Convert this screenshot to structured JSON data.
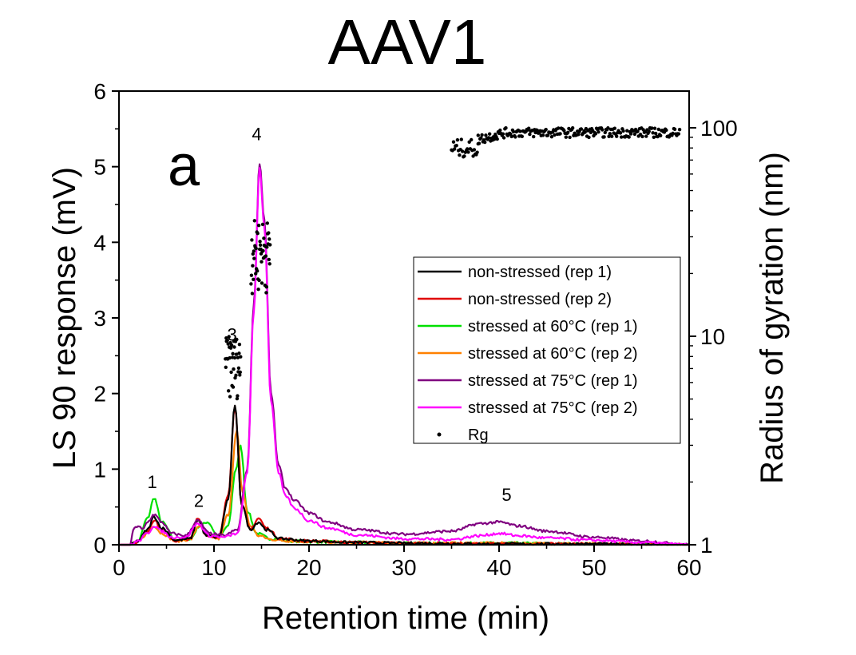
{
  "chart_data": {
    "type": "line",
    "title": "AAV1",
    "panel_label": "a",
    "xlabel": "Retention time (min)",
    "ylabel": "LS 90 response (mV)",
    "y2label": "Radius of gyration (nm)",
    "xlim": [
      0,
      60
    ],
    "ylim": [
      0,
      6
    ],
    "y2lim": [
      1,
      150
    ],
    "y2scale": "log",
    "xticks": [
      0,
      10,
      20,
      30,
      40,
      50,
      60
    ],
    "yticks": [
      0,
      1,
      2,
      3,
      4,
      5,
      6
    ],
    "y2ticks": [
      1,
      10,
      100
    ],
    "x_tick_labels": [
      "0",
      "10",
      "20",
      "30",
      "40",
      "50",
      "60"
    ],
    "y_tick_labels": [
      "0",
      "1",
      "2",
      "3",
      "4",
      "5",
      "6"
    ],
    "y2_tick_labels": [
      "1",
      "10",
      "100"
    ],
    "legend_position": "center-right",
    "series": [
      {
        "name": "non-stressed (rep 1)",
        "color": "#000000",
        "x": [
          0,
          1.2,
          2,
          3,
          3.7,
          4.5,
          6,
          7.5,
          8.3,
          9.2,
          10.5,
          11.5,
          12.2,
          12.9,
          13.8,
          14.7,
          15.5,
          17,
          20,
          25,
          30,
          40,
          50,
          60
        ],
        "y": [
          0,
          0,
          0.05,
          0.2,
          0.37,
          0.22,
          0.06,
          0.08,
          0.33,
          0.12,
          0.1,
          0.6,
          1.85,
          0.55,
          0.2,
          0.3,
          0.2,
          0.08,
          0.05,
          0.03,
          0.02,
          0.01,
          0.01,
          0
        ]
      },
      {
        "name": "non-stressed (rep 2)",
        "color": "#e00000",
        "x": [
          0,
          1.2,
          2,
          3,
          3.7,
          4.5,
          6,
          7.5,
          8.3,
          9.2,
          10.5,
          11.5,
          12.2,
          12.9,
          13.8,
          14.7,
          15.5,
          17,
          20,
          25,
          30,
          40,
          50,
          60
        ],
        "y": [
          0,
          0,
          0.04,
          0.18,
          0.33,
          0.2,
          0.05,
          0.08,
          0.35,
          0.12,
          0.1,
          0.65,
          1.85,
          0.55,
          0.2,
          0.35,
          0.22,
          0.08,
          0.05,
          0.03,
          0.02,
          0.01,
          0.01,
          0
        ]
      },
      {
        "name": "stressed at 60°C (rep 1)",
        "color": "#00e000",
        "x": [
          0,
          1.2,
          2,
          3,
          3.7,
          4.5,
          6,
          7.5,
          8.5,
          9.3,
          10.5,
          11.5,
          12.3,
          12.8,
          13.5,
          14.5,
          16,
          18,
          20,
          25,
          30,
          40,
          50,
          60
        ],
        "y": [
          0,
          0,
          0.05,
          0.35,
          0.62,
          0.3,
          0.06,
          0.08,
          0.25,
          0.3,
          0.1,
          0.25,
          1.0,
          1.3,
          0.45,
          0.15,
          0.08,
          0.05,
          0.04,
          0.03,
          0.02,
          0.02,
          0.01,
          0
        ]
      },
      {
        "name": "stressed at 60°C (rep 2)",
        "color": "#ff8000",
        "x": [
          0,
          1.2,
          2,
          3,
          3.7,
          4.5,
          6,
          7.5,
          8.4,
          9.3,
          10.5,
          11.5,
          12.4,
          13,
          13.8,
          14.7,
          16,
          18,
          20,
          25,
          30,
          40,
          50,
          60
        ],
        "y": [
          0,
          0,
          0.04,
          0.15,
          0.25,
          0.15,
          0.05,
          0.07,
          0.25,
          0.12,
          0.08,
          0.4,
          1.5,
          0.7,
          0.25,
          0.12,
          0.07,
          0.05,
          0.04,
          0.03,
          0.02,
          0.02,
          0.01,
          0
        ]
      },
      {
        "name": "stressed at 75°C (rep 1)",
        "color": "#800080",
        "x": [
          0,
          1.2,
          1.5,
          2,
          2.5,
          3,
          3.7,
          4.5,
          5.5,
          7,
          8.3,
          9.5,
          11,
          12.5,
          13.5,
          14.2,
          14.8,
          15.3,
          16,
          16.8,
          17.5,
          18.5,
          20,
          22,
          25,
          30,
          35,
          38,
          40,
          42,
          45,
          50,
          55,
          60
        ],
        "y": [
          0,
          0,
          0.2,
          0.25,
          0.2,
          0.3,
          0.4,
          0.3,
          0.15,
          0.12,
          0.32,
          0.15,
          0.12,
          0.2,
          1.0,
          3.2,
          5.05,
          4.3,
          2.0,
          1.05,
          0.75,
          0.58,
          0.42,
          0.3,
          0.2,
          0.14,
          0.18,
          0.28,
          0.3,
          0.25,
          0.18,
          0.1,
          0.05,
          0
        ]
      },
      {
        "name": "stressed at 75°C (rep 2)",
        "color": "#ff00ff",
        "x": [
          0,
          1.2,
          2,
          3,
          3.7,
          4.5,
          5.5,
          7,
          8.3,
          9.5,
          11,
          12.5,
          13.5,
          14.2,
          14.8,
          15.3,
          16,
          16.8,
          17.5,
          18.5,
          20,
          22,
          25,
          30,
          35,
          38,
          40,
          42,
          45,
          50,
          55,
          60
        ],
        "y": [
          0,
          0,
          0.05,
          0.15,
          0.25,
          0.18,
          0.1,
          0.1,
          0.28,
          0.12,
          0.1,
          0.15,
          0.95,
          3.1,
          4.98,
          4.2,
          1.9,
          0.95,
          0.65,
          0.48,
          0.32,
          0.22,
          0.13,
          0.08,
          0.07,
          0.12,
          0.15,
          0.12,
          0.09,
          0.06,
          0.03,
          0
        ]
      }
    ],
    "rg_series": {
      "name": "Rg",
      "color": "#000000",
      "axis": "right",
      "marker": "dot",
      "segments": [
        {
          "x_range": [
            11.2,
            12.8
          ],
          "rg_range": [
            5.0,
            10.0
          ]
        },
        {
          "x_range": [
            13.9,
            15.9
          ],
          "rg_range": [
            16.0,
            36.0
          ]
        },
        {
          "x_range": [
            35.0,
            37.8
          ],
          "rg_range": [
            72.0,
            88.0
          ]
        },
        {
          "x_range": [
            37.8,
            59.0
          ],
          "rg_range": [
            88.0,
            103.0
          ]
        }
      ]
    },
    "peak_labels": [
      {
        "text": "1",
        "x": 3.5,
        "y": 0.75
      },
      {
        "text": "2",
        "x": 8.4,
        "y": 0.5
      },
      {
        "text": "3",
        "x": 11.9,
        "y": 2.7
      },
      {
        "text": "4",
        "x": 14.5,
        "y": 5.35
      },
      {
        "text": "5",
        "x": 40.8,
        "y": 0.58
      }
    ]
  }
}
